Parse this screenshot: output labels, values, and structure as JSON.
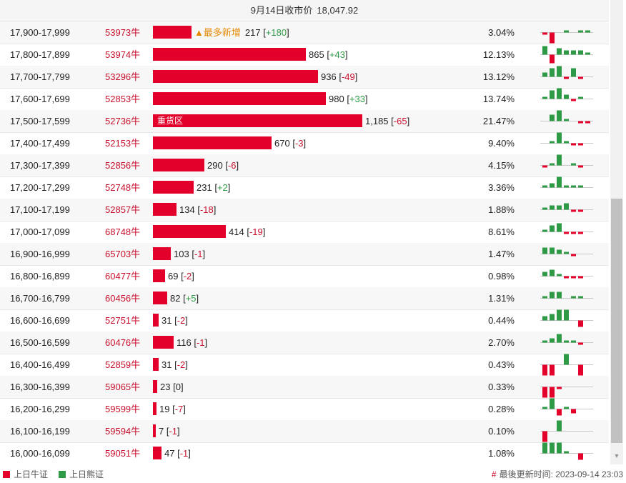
{
  "header": {
    "label": "9月14日收市价",
    "price": "18,047.92"
  },
  "colors": {
    "bull": "#e3002b",
    "bear": "#2e9a46"
  },
  "rows": [
    {
      "range": "17,900-17,999",
      "code": "53973牛",
      "bar_value": 217,
      "total": "217",
      "change": "+180",
      "pct": "3.04%",
      "note": "▲最多新增",
      "tag": "",
      "mini": [
        -1,
        -5,
        0,
        1,
        0,
        1,
        1
      ]
    },
    {
      "range": "17,800-17,899",
      "code": "53974牛",
      "bar_value": 865,
      "total": "865",
      "change": "+43",
      "pct": "12.13%",
      "note": "",
      "tag": "",
      "mini": [
        4,
        -4,
        3,
        2,
        2,
        2,
        1
      ]
    },
    {
      "range": "17,700-17,799",
      "code": "53296牛",
      "bar_value": 936,
      "total": "936",
      "change": "-49",
      "pct": "13.12%",
      "note": "",
      "tag": "",
      "mini": [
        2,
        4,
        5,
        -1,
        4,
        -1,
        0
      ]
    },
    {
      "range": "17,600-17,699",
      "code": "52853牛",
      "bar_value": 980,
      "total": "980",
      "change": "+33",
      "pct": "13.74%",
      "note": "",
      "tag": "",
      "mini": [
        1,
        4,
        5,
        2,
        -1,
        1,
        0
      ]
    },
    {
      "range": "17,500-17,599",
      "code": "52736牛",
      "bar_value": 1185,
      "total": "1,185",
      "change": "-65",
      "pct": "21.47%",
      "note": "",
      "tag": "重货区",
      "mini": [
        0,
        3,
        5,
        1,
        0,
        -1,
        -1
      ]
    },
    {
      "range": "17,400-17,499",
      "code": "52153牛",
      "bar_value": 670,
      "total": "670",
      "change": "-3",
      "pct": "9.40%",
      "note": "",
      "tag": "",
      "mini": [
        0,
        1,
        5,
        1,
        -1,
        -1,
        0
      ]
    },
    {
      "range": "17,300-17,399",
      "code": "52856牛",
      "bar_value": 290,
      "total": "290",
      "change": "-6",
      "pct": "4.15%",
      "note": "",
      "tag": "",
      "mini": [
        -1,
        1,
        5,
        0,
        1,
        -1,
        0
      ]
    },
    {
      "range": "17,200-17,299",
      "code": "52748牛",
      "bar_value": 231,
      "total": "231",
      "change": "+2",
      "pct": "3.36%",
      "note": "",
      "tag": "",
      "mini": [
        1,
        2,
        5,
        1,
        1,
        1,
        0
      ]
    },
    {
      "range": "17,100-17,199",
      "code": "52857牛",
      "bar_value": 134,
      "total": "134",
      "change": "-18",
      "pct": "1.88%",
      "note": "",
      "tag": "",
      "mini": [
        1,
        2,
        2,
        3,
        -1,
        -1,
        0
      ]
    },
    {
      "range": "17,000-17,099",
      "code": "68748牛",
      "bar_value": 414,
      "total": "414",
      "change": "-19",
      "pct": "8.61%",
      "note": "",
      "tag": "",
      "mini": [
        1,
        3,
        4,
        -1,
        -1,
        -1,
        0
      ]
    },
    {
      "range": "16,900-16,999",
      "code": "65703牛",
      "bar_value": 103,
      "total": "103",
      "change": "-1",
      "pct": "1.47%",
      "note": "",
      "tag": "",
      "mini": [
        3,
        3,
        2,
        1,
        -1,
        0,
        0
      ]
    },
    {
      "range": "16,800-16,899",
      "code": "60477牛",
      "bar_value": 69,
      "total": "69",
      "change": "-2",
      "pct": "0.98%",
      "note": "",
      "tag": "",
      "mini": [
        2,
        3,
        1,
        -1,
        -1,
        -1,
        0
      ]
    },
    {
      "range": "16,700-16,799",
      "code": "60456牛",
      "bar_value": 82,
      "total": "82",
      "change": "+5",
      "pct": "1.31%",
      "note": "",
      "tag": "",
      "mini": [
        1,
        3,
        3,
        0,
        1,
        1,
        0
      ]
    },
    {
      "range": "16,600-16,699",
      "code": "52751牛",
      "bar_value": 31,
      "total": "31",
      "change": "-2",
      "pct": "0.44%",
      "note": "",
      "tag": "",
      "mini": [
        2,
        3,
        5,
        5,
        0,
        -3,
        0
      ]
    },
    {
      "range": "16,500-16,599",
      "code": "60476牛",
      "bar_value": 116,
      "total": "116",
      "change": "-1",
      "pct": "2.70%",
      "note": "",
      "tag": "",
      "mini": [
        1,
        2,
        4,
        1,
        1,
        -1,
        0
      ]
    },
    {
      "range": "16,400-16,499",
      "code": "52859牛",
      "bar_value": 31,
      "total": "31",
      "change": "-2",
      "pct": "0.43%",
      "note": "",
      "tag": "",
      "mini": [
        -5,
        -5,
        0,
        5,
        0,
        -5,
        0
      ]
    },
    {
      "range": "16,300-16,399",
      "code": "59065牛",
      "bar_value": 23,
      "total": "23",
      "change": "0",
      "pct": "0.33%",
      "note": "",
      "tag": "",
      "mini": [
        -5,
        -5,
        -1,
        0,
        0,
        0,
        0
      ]
    },
    {
      "range": "16,200-16,299",
      "code": "59599牛",
      "bar_value": 19,
      "total": "19",
      "change": "-7",
      "pct": "0.28%",
      "note": "",
      "tag": "",
      "mini": [
        1,
        5,
        -3,
        1,
        -2,
        0,
        0
      ]
    },
    {
      "range": "16,100-16,199",
      "code": "59594牛",
      "bar_value": 7,
      "total": "7",
      "change": "-1",
      "pct": "0.10%",
      "note": "",
      "tag": "",
      "mini": [
        -5,
        0,
        5,
        0,
        0,
        0,
        0
      ]
    },
    {
      "range": "16,000-16,099",
      "code": "59051牛",
      "bar_value": 47,
      "total": "47",
      "change": "-1",
      "pct": "1.08%",
      "note": "",
      "tag": "",
      "mini": [
        5,
        5,
        5,
        1,
        0,
        -3,
        0
      ]
    }
  ],
  "legend": {
    "bull": "上日牛证",
    "bear": "上日熊证"
  },
  "updated": {
    "label": "最後更新时间:",
    "value": "2023-09-14 23:03"
  }
}
